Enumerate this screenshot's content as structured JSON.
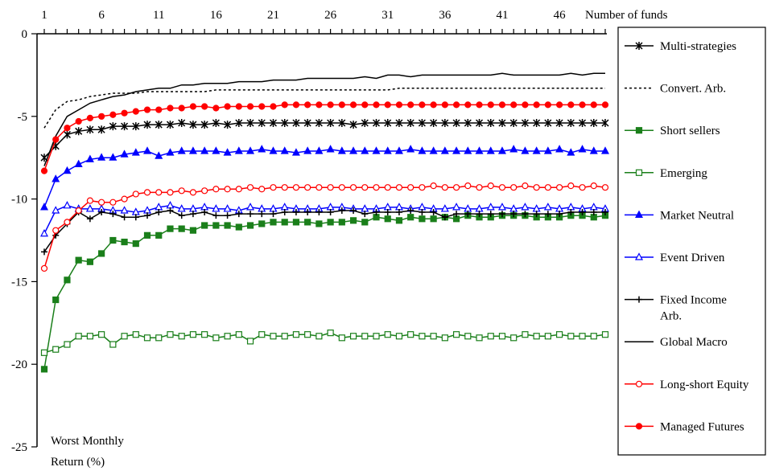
{
  "chart_data": {
    "type": "line",
    "xlabel": "Number of funds",
    "ylabel": [
      "Worst Monthly",
      "Return (%)"
    ],
    "xticks": [
      1,
      6,
      11,
      16,
      21,
      26,
      31,
      36,
      41,
      46
    ],
    "yticks": [
      0,
      -5,
      -10,
      -15,
      -20,
      -25
    ],
    "xlim": [
      1,
      50
    ],
    "ylim": [
      -25,
      0
    ],
    "grid": false,
    "legend_position": "right",
    "x": [
      1,
      2,
      3,
      4,
      5,
      6,
      7,
      8,
      9,
      10,
      11,
      12,
      13,
      14,
      15,
      16,
      17,
      18,
      19,
      20,
      21,
      22,
      23,
      24,
      25,
      26,
      27,
      28,
      29,
      30,
      31,
      32,
      33,
      34,
      35,
      36,
      37,
      38,
      39,
      40,
      41,
      42,
      43,
      44,
      45,
      46,
      47,
      48,
      49,
      50
    ],
    "series": [
      {
        "name": "Multi-strategies",
        "color": "#000000",
        "marker": "asterisk",
        "filled": true,
        "dash": "",
        "values": [
          -7.5,
          -6.8,
          -6.1,
          -5.9,
          -5.8,
          -5.8,
          -5.6,
          -5.6,
          -5.6,
          -5.5,
          -5.5,
          -5.5,
          -5.4,
          -5.5,
          -5.5,
          -5.4,
          -5.5,
          -5.4,
          -5.4,
          -5.4,
          -5.4,
          -5.4,
          -5.4,
          -5.4,
          -5.4,
          -5.4,
          -5.4,
          -5.5,
          -5.4,
          -5.4,
          -5.4,
          -5.4,
          -5.4,
          -5.4,
          -5.4,
          -5.4,
          -5.4,
          -5.4,
          -5.4,
          -5.4,
          -5.4,
          -5.4,
          -5.4,
          -5.4,
          -5.4,
          -5.4,
          -5.4,
          -5.4,
          -5.4,
          -5.4
        ]
      },
      {
        "name": "Convert. Arb.",
        "color": "#000000",
        "marker": "none",
        "filled": false,
        "dash": "3,3",
        "values": [
          -5.7,
          -4.6,
          -4.1,
          -4.0,
          -3.8,
          -3.7,
          -3.6,
          -3.6,
          -3.6,
          -3.5,
          -3.5,
          -3.5,
          -3.5,
          -3.5,
          -3.5,
          -3.4,
          -3.4,
          -3.4,
          -3.4,
          -3.4,
          -3.4,
          -3.4,
          -3.4,
          -3.4,
          -3.4,
          -3.4,
          -3.4,
          -3.4,
          -3.4,
          -3.4,
          -3.4,
          -3.3,
          -3.3,
          -3.3,
          -3.3,
          -3.3,
          -3.3,
          -3.3,
          -3.3,
          -3.3,
          -3.3,
          -3.3,
          -3.3,
          -3.3,
          -3.3,
          -3.3,
          -3.3,
          -3.3,
          -3.3,
          -3.3
        ]
      },
      {
        "name": "Short sellers",
        "color": "#1a7f1a",
        "marker": "square",
        "filled": true,
        "dash": "",
        "values": [
          -20.3,
          -16.1,
          -14.9,
          -13.7,
          -13.8,
          -13.3,
          -12.5,
          -12.6,
          -12.7,
          -12.2,
          -12.2,
          -11.8,
          -11.8,
          -11.9,
          -11.6,
          -11.6,
          -11.6,
          -11.7,
          -11.6,
          -11.5,
          -11.4,
          -11.4,
          -11.4,
          -11.4,
          -11.5,
          -11.4,
          -11.4,
          -11.3,
          -11.4,
          -11.1,
          -11.2,
          -11.3,
          -11.1,
          -11.2,
          -11.2,
          -11.1,
          -11.2,
          -11.0,
          -11.1,
          -11.1,
          -11.0,
          -11.0,
          -11.0,
          -11.1,
          -11.1,
          -11.1,
          -11.0,
          -11.0,
          -11.1,
          -11.0
        ]
      },
      {
        "name": "Emerging",
        "color": "#1a7f1a",
        "marker": "square",
        "filled": false,
        "dash": "",
        "values": [
          -19.3,
          -19.1,
          -18.8,
          -18.3,
          -18.3,
          -18.2,
          -18.8,
          -18.3,
          -18.2,
          -18.4,
          -18.4,
          -18.2,
          -18.3,
          -18.2,
          -18.2,
          -18.4,
          -18.3,
          -18.2,
          -18.6,
          -18.2,
          -18.3,
          -18.3,
          -18.2,
          -18.2,
          -18.3,
          -18.1,
          -18.4,
          -18.3,
          -18.3,
          -18.3,
          -18.2,
          -18.3,
          -18.2,
          -18.3,
          -18.3,
          -18.4,
          -18.2,
          -18.3,
          -18.4,
          -18.3,
          -18.3,
          -18.4,
          -18.2,
          -18.3,
          -18.3,
          -18.2,
          -18.3,
          -18.3,
          -18.3,
          -18.2
        ]
      },
      {
        "name": "Market Neutral",
        "color": "#0000ff",
        "marker": "triangle",
        "filled": true,
        "dash": "",
        "values": [
          -10.5,
          -8.8,
          -8.3,
          -7.9,
          -7.6,
          -7.5,
          -7.5,
          -7.3,
          -7.2,
          -7.1,
          -7.4,
          -7.2,
          -7.1,
          -7.1,
          -7.1,
          -7.1,
          -7.2,
          -7.1,
          -7.1,
          -7.0,
          -7.1,
          -7.1,
          -7.2,
          -7.1,
          -7.1,
          -7.0,
          -7.1,
          -7.1,
          -7.1,
          -7.1,
          -7.1,
          -7.1,
          -7.0,
          -7.1,
          -7.1,
          -7.1,
          -7.1,
          -7.1,
          -7.1,
          -7.1,
          -7.1,
          -7.0,
          -7.1,
          -7.1,
          -7.1,
          -7.0,
          -7.2,
          -7.0,
          -7.1,
          -7.1
        ]
      },
      {
        "name": "Event Driven",
        "color": "#0000ff",
        "marker": "triangle",
        "filled": false,
        "dash": "",
        "values": [
          -12.1,
          -10.7,
          -10.4,
          -10.6,
          -10.6,
          -10.6,
          -10.7,
          -10.7,
          -10.8,
          -10.7,
          -10.5,
          -10.4,
          -10.6,
          -10.6,
          -10.5,
          -10.6,
          -10.6,
          -10.7,
          -10.5,
          -10.6,
          -10.6,
          -10.5,
          -10.6,
          -10.6,
          -10.6,
          -10.5,
          -10.5,
          -10.6,
          -10.6,
          -10.6,
          -10.5,
          -10.5,
          -10.6,
          -10.5,
          -10.6,
          -10.6,
          -10.5,
          -10.6,
          -10.6,
          -10.5,
          -10.5,
          -10.6,
          -10.5,
          -10.6,
          -10.5,
          -10.6,
          -10.5,
          -10.6,
          -10.5,
          -10.6
        ]
      },
      {
        "name": "Fixed Income Arb.",
        "color": "#000000",
        "marker": "plus",
        "filled": true,
        "dash": "",
        "values": [
          -13.2,
          -12.2,
          -11.5,
          -10.8,
          -11.2,
          -10.8,
          -10.9,
          -11.1,
          -11.1,
          -11.0,
          -10.8,
          -10.7,
          -11.0,
          -10.9,
          -10.8,
          -11.0,
          -11.0,
          -10.9,
          -10.9,
          -10.9,
          -10.9,
          -10.8,
          -10.8,
          -10.8,
          -10.8,
          -10.8,
          -10.7,
          -10.7,
          -10.9,
          -10.8,
          -10.8,
          -10.8,
          -10.7,
          -10.8,
          -10.8,
          -11.1,
          -10.9,
          -10.9,
          -10.9,
          -10.9,
          -10.9,
          -10.9,
          -10.9,
          -10.9,
          -10.9,
          -10.9,
          -10.8,
          -10.8,
          -10.8,
          -10.8
        ]
      },
      {
        "name": "Global Macro",
        "color": "#000000",
        "marker": "none",
        "filled": false,
        "dash": "",
        "values": [
          -8.0,
          -6.2,
          -5.0,
          -4.6,
          -4.2,
          -4.0,
          -3.8,
          -3.7,
          -3.5,
          -3.4,
          -3.3,
          -3.3,
          -3.1,
          -3.1,
          -3.0,
          -3.0,
          -3.0,
          -2.9,
          -2.9,
          -2.9,
          -2.8,
          -2.8,
          -2.8,
          -2.7,
          -2.7,
          -2.7,
          -2.7,
          -2.7,
          -2.6,
          -2.7,
          -2.5,
          -2.5,
          -2.6,
          -2.5,
          -2.5,
          -2.5,
          -2.5,
          -2.5,
          -2.5,
          -2.5,
          -2.4,
          -2.5,
          -2.5,
          -2.5,
          -2.5,
          -2.5,
          -2.4,
          -2.5,
          -2.4,
          -2.4
        ]
      },
      {
        "name": "Long-short Equity",
        "color": "#ff0000",
        "marker": "circle",
        "filled": false,
        "dash": "",
        "values": [
          -14.2,
          -11.9,
          -11.4,
          -10.7,
          -10.1,
          -10.2,
          -10.2,
          -10.0,
          -9.7,
          -9.6,
          -9.6,
          -9.6,
          -9.5,
          -9.6,
          -9.5,
          -9.4,
          -9.4,
          -9.4,
          -9.3,
          -9.4,
          -9.3,
          -9.3,
          -9.3,
          -9.3,
          -9.3,
          -9.3,
          -9.3,
          -9.3,
          -9.3,
          -9.3,
          -9.3,
          -9.3,
          -9.3,
          -9.3,
          -9.2,
          -9.3,
          -9.3,
          -9.2,
          -9.3,
          -9.2,
          -9.3,
          -9.3,
          -9.2,
          -9.3,
          -9.3,
          -9.3,
          -9.2,
          -9.3,
          -9.2,
          -9.3
        ]
      },
      {
        "name": "Managed Futures",
        "color": "#ff0000",
        "marker": "circle",
        "filled": true,
        "dash": "",
        "values": [
          -8.3,
          -6.4,
          -5.7,
          -5.3,
          -5.1,
          -5.0,
          -4.9,
          -4.8,
          -4.7,
          -4.6,
          -4.6,
          -4.5,
          -4.5,
          -4.4,
          -4.4,
          -4.5,
          -4.4,
          -4.4,
          -4.4,
          -4.4,
          -4.4,
          -4.3,
          -4.3,
          -4.3,
          -4.3,
          -4.3,
          -4.3,
          -4.3,
          -4.3,
          -4.3,
          -4.3,
          -4.3,
          -4.3,
          -4.3,
          -4.3,
          -4.3,
          -4.3,
          -4.3,
          -4.3,
          -4.3,
          -4.3,
          -4.3,
          -4.3,
          -4.3,
          -4.3,
          -4.3,
          -4.3,
          -4.3,
          -4.3,
          -4.3
        ]
      }
    ]
  }
}
